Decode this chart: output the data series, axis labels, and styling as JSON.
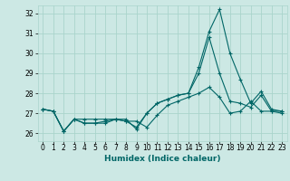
{
  "title": "",
  "xlabel": "Humidex (Indice chaleur)",
  "ylabel": "",
  "bg_color": "#cce8e4",
  "grid_color": "#aad4cc",
  "line_color": "#006666",
  "xlim": [
    -0.5,
    23.5
  ],
  "ylim": [
    25.6,
    32.4
  ],
  "yticks": [
    26,
    27,
    28,
    29,
    30,
    31,
    32
  ],
  "xticks": [
    0,
    1,
    2,
    3,
    4,
    5,
    6,
    7,
    8,
    9,
    10,
    11,
    12,
    13,
    14,
    15,
    16,
    17,
    18,
    19,
    20,
    21,
    22,
    23
  ],
  "series": [
    [
      27.2,
      27.1,
      26.1,
      26.7,
      26.7,
      26.7,
      26.7,
      26.7,
      26.6,
      26.6,
      26.3,
      26.9,
      27.4,
      27.6,
      27.8,
      28.0,
      28.3,
      27.8,
      27.0,
      27.1,
      27.6,
      27.1,
      27.1,
      27.1
    ],
    [
      27.2,
      27.1,
      26.1,
      26.7,
      26.5,
      26.5,
      26.5,
      26.7,
      26.6,
      26.3,
      27.0,
      27.5,
      27.7,
      27.9,
      28.0,
      29.3,
      31.1,
      32.2,
      30.0,
      28.7,
      27.5,
      28.1,
      27.2,
      27.1
    ],
    [
      27.2,
      27.1,
      26.1,
      26.7,
      26.5,
      26.5,
      26.6,
      26.7,
      26.7,
      26.2,
      27.0,
      27.5,
      27.7,
      27.9,
      28.0,
      29.0,
      30.8,
      29.0,
      27.6,
      27.5,
      27.3,
      27.9,
      27.1,
      27.0
    ]
  ],
  "tick_fontsize": 5.5,
  "xlabel_fontsize": 6.5,
  "xlabel_fontweight": "bold"
}
